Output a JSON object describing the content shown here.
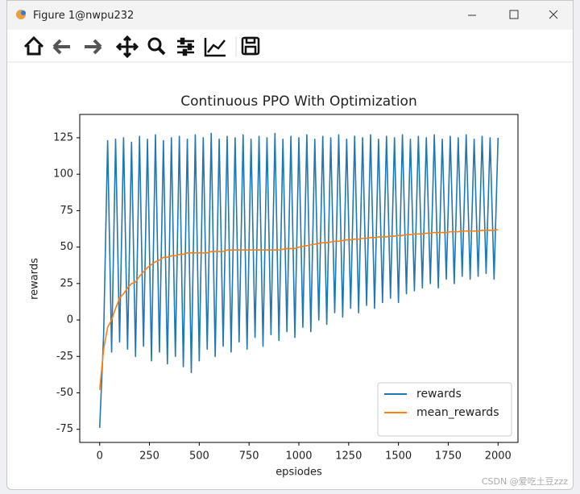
{
  "window": {
    "title": "Figure 1@nwpu232"
  },
  "watermark": "CSDN @爱吃土豆zzz",
  "chart_data": {
    "type": "line",
    "title": "Continuous PPO With Optimization",
    "x_label": "epsiodes",
    "y_label": "rewards",
    "x": [
      0,
      20,
      40,
      60,
      80,
      100,
      120,
      140,
      160,
      180,
      200,
      220,
      240,
      260,
      280,
      300,
      320,
      340,
      360,
      380,
      400,
      420,
      440,
      460,
      480,
      500,
      520,
      540,
      560,
      580,
      600,
      620,
      640,
      660,
      680,
      700,
      720,
      740,
      760,
      780,
      800,
      820,
      840,
      860,
      880,
      900,
      920,
      940,
      960,
      980,
      1000,
      1020,
      1040,
      1060,
      1080,
      1100,
      1120,
      1140,
      1160,
      1180,
      1200,
      1220,
      1240,
      1260,
      1280,
      1300,
      1320,
      1340,
      1360,
      1380,
      1400,
      1420,
      1440,
      1460,
      1480,
      1500,
      1520,
      1540,
      1560,
      1580,
      1600,
      1620,
      1640,
      1660,
      1680,
      1700,
      1720,
      1740,
      1760,
      1780,
      1800,
      1820,
      1840,
      1860,
      1880,
      1900,
      1920,
      1940,
      1960,
      1980,
      2000
    ],
    "series": [
      {
        "name": "rewards",
        "color": "#1f77b4",
        "values": [
          -74,
          -10,
          123,
          -22,
          124,
          -15,
          125,
          -20,
          122,
          -25,
          126,
          -18,
          124,
          -28,
          127,
          -22,
          123,
          -30,
          125,
          -25,
          126,
          -32,
          124,
          -36,
          127,
          -28,
          125,
          -20,
          128,
          -25,
          124,
          -18,
          126,
          -22,
          125,
          -15,
          127,
          -20,
          124,
          -12,
          126,
          -18,
          125,
          -10,
          128,
          -14,
          124,
          -8,
          126,
          -12,
          125,
          -5,
          127,
          -8,
          124,
          0,
          126,
          -3,
          125,
          5,
          127,
          2,
          124,
          8,
          126,
          5,
          125,
          10,
          127,
          8,
          124,
          12,
          126,
          15,
          125,
          12,
          127,
          18,
          124,
          20,
          126,
          22,
          125,
          25,
          127,
          22,
          124,
          28,
          126,
          25,
          125,
          30,
          127,
          28,
          124,
          30,
          126,
          32,
          125,
          28,
          125
        ]
      },
      {
        "name": "mean_rewards",
        "color": "#ff7f0e",
        "values": [
          -48,
          -20,
          -5,
          0,
          8,
          15,
          18,
          22,
          25,
          26,
          30,
          33,
          36,
          38,
          40,
          41,
          43,
          43,
          44,
          44,
          45,
          45,
          46,
          46,
          46,
          46,
          46,
          46,
          47,
          47,
          47,
          47,
          48,
          48,
          48,
          48,
          48,
          48,
          48,
          48,
          48,
          48,
          48,
          48,
          48,
          48,
          48.5,
          49,
          49,
          49,
          50,
          50.5,
          51,
          51.5,
          52,
          52.5,
          53,
          53,
          53.5,
          54,
          54,
          54.5,
          55,
          55,
          55.5,
          55.5,
          56,
          56,
          56.5,
          56.5,
          57,
          57,
          57,
          57.5,
          57.5,
          58,
          58,
          58.5,
          58.5,
          59,
          59,
          59,
          59.5,
          59.5,
          60,
          60,
          60,
          60,
          60.5,
          60.5,
          60.5,
          61,
          61,
          61,
          61,
          61,
          61.5,
          61.5,
          61.5,
          61.5,
          62
        ]
      }
    ],
    "xlim": [
      -100,
      2100
    ],
    "ylim": [
      -84,
      141
    ],
    "xticks": [
      0,
      250,
      500,
      750,
      1000,
      1250,
      1500,
      1750,
      2000
    ],
    "yticks": [
      -75,
      -50,
      -25,
      0,
      25,
      50,
      75,
      100,
      125
    ],
    "legend": "lower right"
  }
}
